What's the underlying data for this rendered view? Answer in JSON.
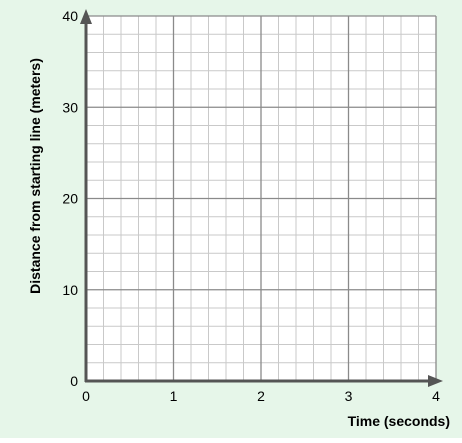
{
  "chart_data": {
    "type": "line",
    "title": "",
    "xlabel": "Time (seconds)",
    "ylabel": "Distance from starting line (meters)",
    "xlim": [
      0,
      4
    ],
    "ylim": [
      0,
      40
    ],
    "x_major_step": 1,
    "y_major_step": 10,
    "x_minor_divisions": 5,
    "y_minor_divisions": 5,
    "x_ticks": [
      "0",
      "1",
      "2",
      "3",
      "4"
    ],
    "y_ticks": [
      "0",
      "10",
      "20",
      "30",
      "40"
    ],
    "series": [],
    "grid": true,
    "colors": {
      "background": "#e6f6e9",
      "plot_area": "#ffffff",
      "minor_grid": "#c9c9c9",
      "major_grid": "#8a8a8a",
      "axis": "#555555",
      "text": "#000000"
    }
  }
}
